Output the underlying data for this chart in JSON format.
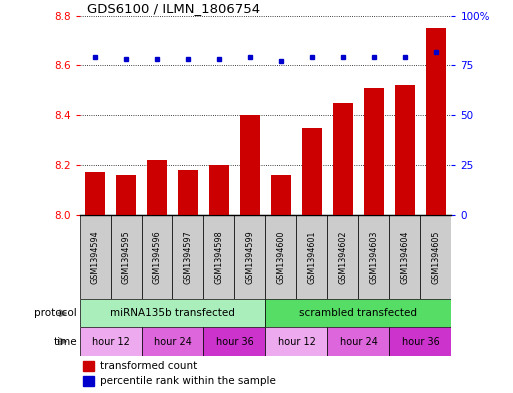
{
  "title": "GDS6100 / ILMN_1806754",
  "samples": [
    "GSM1394594",
    "GSM1394595",
    "GSM1394596",
    "GSM1394597",
    "GSM1394598",
    "GSM1394599",
    "GSM1394600",
    "GSM1394601",
    "GSM1394602",
    "GSM1394603",
    "GSM1394604",
    "GSM1394605"
  ],
  "bar_values": [
    8.17,
    8.16,
    8.22,
    8.18,
    8.2,
    8.4,
    8.16,
    8.35,
    8.45,
    8.51,
    8.52,
    8.75
  ],
  "percentile_values": [
    79,
    78,
    78,
    78,
    78,
    79,
    77,
    79,
    79,
    79,
    79,
    82
  ],
  "bar_color": "#cc0000",
  "dot_color": "#0000cc",
  "ylim_left": [
    8.0,
    8.8
  ],
  "ylim_right": [
    0,
    100
  ],
  "yticks_left": [
    8.0,
    8.2,
    8.4,
    8.6,
    8.8
  ],
  "yticks_right": [
    0,
    25,
    50,
    75,
    100
  ],
  "protocol_labels": [
    "miRNA135b transfected",
    "scrambled transfected"
  ],
  "protocol_color_left": "#aaeebb",
  "protocol_color_right": "#55dd66",
  "time_labels": [
    "hour 12",
    "hour 24",
    "hour 36",
    "hour 12",
    "hour 24",
    "hour 36"
  ],
  "time_colors": [
    "#eeaaee",
    "#dd66dd",
    "#cc33cc",
    "#eeaaee",
    "#dd66dd",
    "#cc33cc"
  ],
  "sample_bg_color": "#cccccc",
  "legend_red_label": "transformed count",
  "legend_blue_label": "percentile rank within the sample",
  "bar_bottom": 8.0
}
